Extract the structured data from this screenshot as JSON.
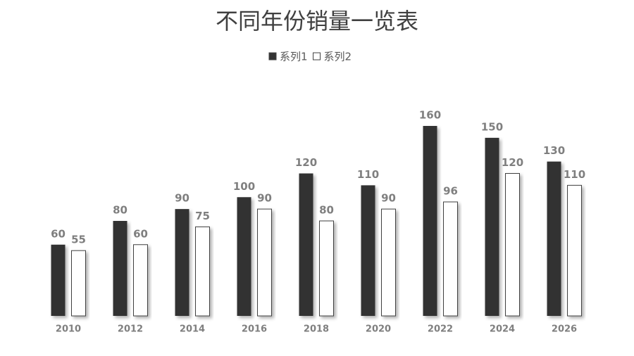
{
  "chart_data": {
    "type": "bar",
    "title": "不同年份销量一览表",
    "categories": [
      "2010",
      "2012",
      "2014",
      "2016",
      "2018",
      "2020",
      "2022",
      "2024",
      "2026"
    ],
    "series": [
      {
        "name": "系列1",
        "color": "#333333",
        "values": [
          60,
          80,
          90,
          100,
          120,
          110,
          160,
          150,
          130
        ]
      },
      {
        "name": "系列2",
        "color": "#ffffff",
        "values": [
          55,
          60,
          75,
          90,
          80,
          90,
          96,
          120,
          110
        ]
      }
    ],
    "legend": "top"
  }
}
